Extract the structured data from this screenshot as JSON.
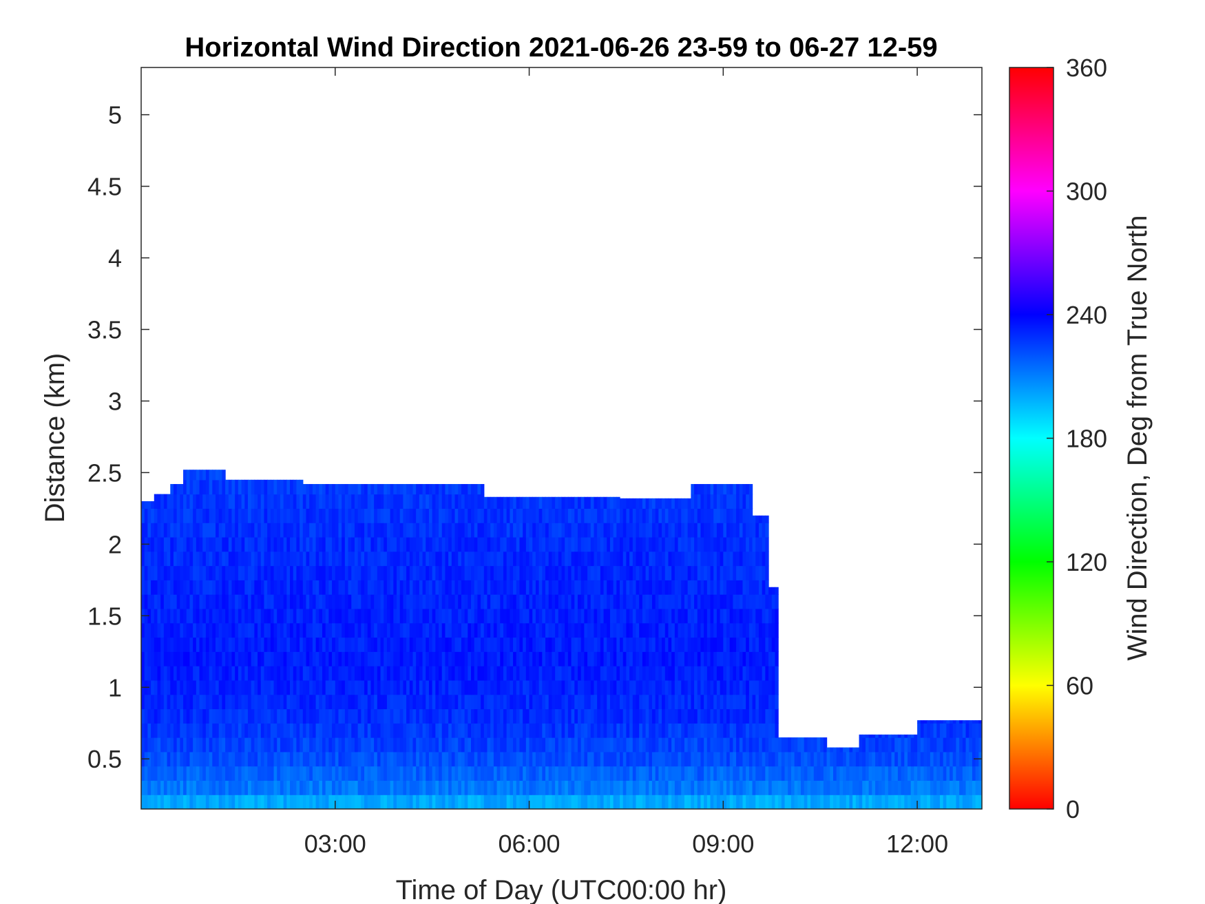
{
  "chart_data": {
    "type": "heatmap",
    "title": "Horizontal Wind Direction 2021-06-26 23-59 to 06-27 12-59",
    "xlabel": "Time of Day (UTC00:00 hr)",
    "ylabel": "Distance (km)",
    "xlim": [
      0.0,
      13.0
    ],
    "ylim": [
      0.15,
      5.33
    ],
    "x_ticks": [
      {
        "value": 3,
        "label": "03:00"
      },
      {
        "value": 6,
        "label": "06:00"
      },
      {
        "value": 9,
        "label": "09:00"
      },
      {
        "value": 12,
        "label": "12:00"
      }
    ],
    "y_ticks": [
      {
        "value": 0.5,
        "label": "0.5"
      },
      {
        "value": 1,
        "label": "1"
      },
      {
        "value": 1.5,
        "label": "1.5"
      },
      {
        "value": 2,
        "label": "2"
      },
      {
        "value": 2.5,
        "label": "2.5"
      },
      {
        "value": 3,
        "label": "3"
      },
      {
        "value": 3.5,
        "label": "3.5"
      },
      {
        "value": 4,
        "label": "4"
      },
      {
        "value": 4.5,
        "label": "4.5"
      },
      {
        "value": 5,
        "label": "5"
      }
    ],
    "colorbar": {
      "label": "Wind Direction, Deg from True North",
      "range": [
        0,
        360
      ],
      "colormap": "hsv",
      "ticks": [
        {
          "value": 0,
          "label": "0"
        },
        {
          "value": 60,
          "label": "60"
        },
        {
          "value": 120,
          "label": "120"
        },
        {
          "value": 180,
          "label": "180"
        },
        {
          "value": 240,
          "label": "240"
        },
        {
          "value": 300,
          "label": "300"
        },
        {
          "value": 360,
          "label": "360"
        }
      ]
    },
    "grid": false,
    "data_coverage": [
      {
        "t_start": 0.0,
        "t_end": 0.2,
        "top_km": 2.3
      },
      {
        "t_start": 0.2,
        "t_end": 0.45,
        "top_km": 2.35
      },
      {
        "t_start": 0.45,
        "t_end": 0.65,
        "top_km": 2.42
      },
      {
        "t_start": 0.65,
        "t_end": 1.3,
        "top_km": 2.52
      },
      {
        "t_start": 1.3,
        "t_end": 2.5,
        "top_km": 2.45
      },
      {
        "t_start": 2.5,
        "t_end": 5.3,
        "top_km": 2.42
      },
      {
        "t_start": 5.3,
        "t_end": 7.4,
        "top_km": 2.33
      },
      {
        "t_start": 7.4,
        "t_end": 8.5,
        "top_km": 2.32
      },
      {
        "t_start": 8.5,
        "t_end": 9.45,
        "top_km": 2.42
      },
      {
        "t_start": 9.45,
        "t_end": 9.72,
        "top_km": 2.2
      },
      {
        "t_start": 9.72,
        "t_end": 9.85,
        "top_km": 1.7
      },
      {
        "t_start": 9.85,
        "t_end": 10.6,
        "top_km": 0.65
      },
      {
        "t_start": 10.6,
        "t_end": 11.1,
        "top_km": 0.58
      },
      {
        "t_start": 11.1,
        "t_end": 12.0,
        "top_km": 0.67
      },
      {
        "t_start": 12.0,
        "t_end": 13.0,
        "top_km": 0.77
      }
    ],
    "direction_profile_deg": [
      {
        "height_km": 0.15,
        "deg": 195
      },
      {
        "height_km": 0.3,
        "deg": 212
      },
      {
        "height_km": 0.5,
        "deg": 222
      },
      {
        "height_km": 0.8,
        "deg": 230
      },
      {
        "height_km": 1.2,
        "deg": 234
      },
      {
        "height_km": 2.0,
        "deg": 230
      },
      {
        "height_km": 2.5,
        "deg": 226
      }
    ]
  }
}
